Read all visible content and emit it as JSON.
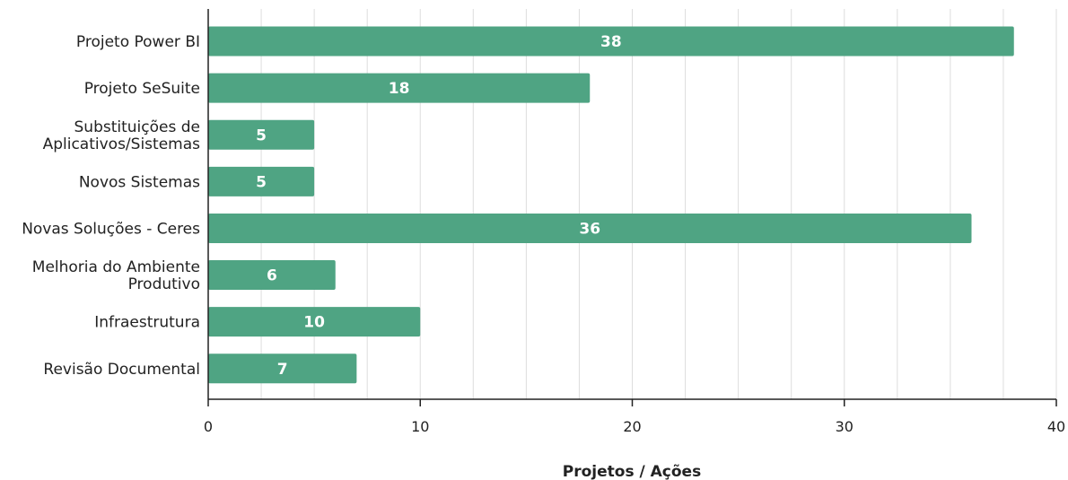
{
  "chart_data": {
    "type": "bar",
    "orientation": "horizontal",
    "categories": [
      [
        "Projeto Power BI"
      ],
      [
        "Projeto SeSuite"
      ],
      [
        "Substituições de",
        "Aplicativos/Sistemas"
      ],
      [
        "Novos Sistemas"
      ],
      [
        "Novas Soluções - Ceres"
      ],
      [
        "Melhoria do Ambiente",
        "Produtivo"
      ],
      [
        "Infraestrutura"
      ],
      [
        "Revisão Documental"
      ]
    ],
    "values": [
      38,
      18,
      5,
      5,
      36,
      6,
      10,
      7
    ],
    "data_labels": [
      "38",
      "18",
      "5",
      "5",
      "36",
      "6",
      "10",
      "7"
    ],
    "xlabel": "Projetos / Ações",
    "ylabel": "",
    "xlim": [
      0,
      40
    ],
    "x_ticks": [
      "0",
      "10",
      "20",
      "30",
      "40"
    ],
    "grid": true,
    "legend": "none",
    "bar_color": "#4fa483",
    "grid_color": "#dddddd",
    "axis_color": "#222222"
  }
}
